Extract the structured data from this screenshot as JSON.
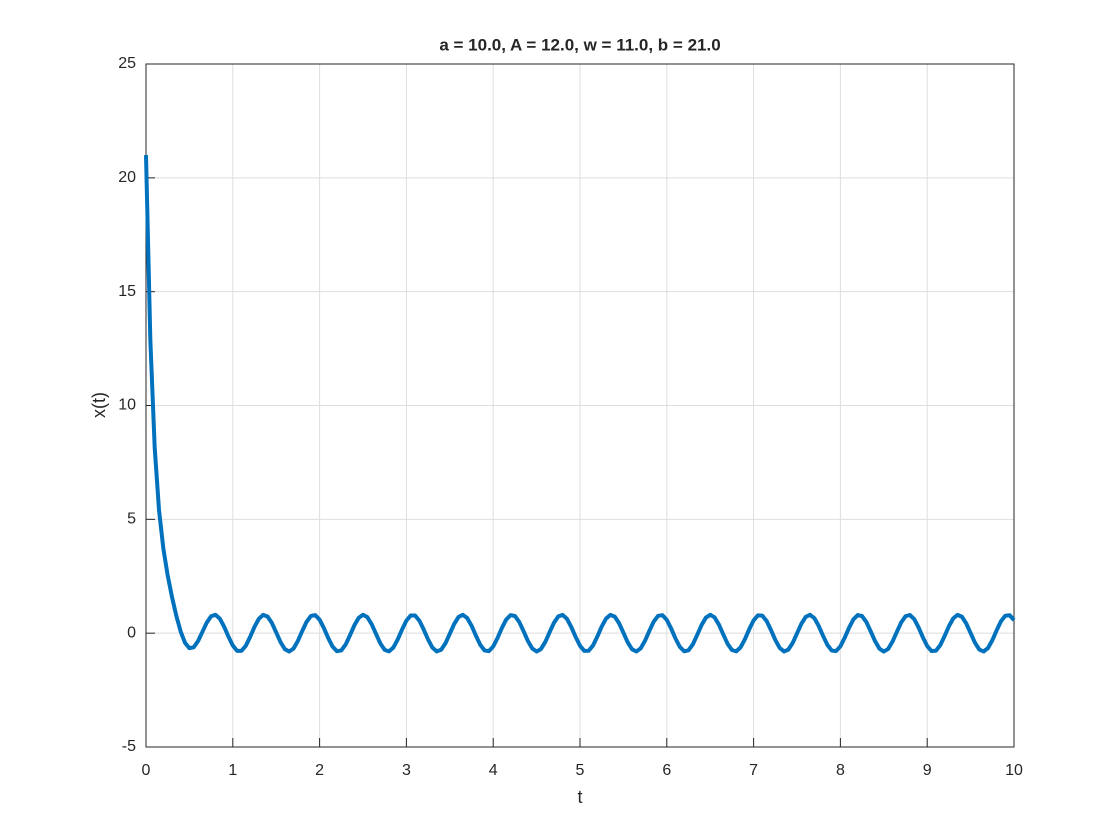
{
  "chart_data": {
    "type": "line",
    "title": "a = 10.0, A = 12.0, w = 11.0, b = 21.0",
    "x_label": "t",
    "y_label": "x(t)",
    "xlim": [
      0,
      10
    ],
    "ylim": [
      -5,
      25
    ],
    "xticks": [
      0,
      1,
      2,
      3,
      4,
      5,
      6,
      7,
      8,
      9,
      10
    ],
    "yticks": [
      -5,
      0,
      5,
      10,
      15,
      20,
      25
    ],
    "grid": true,
    "x": [
      0,
      0.05,
      0.1,
      0.15,
      0.2,
      0.25,
      0.3,
      0.35,
      0.4,
      0.45,
      0.5,
      0.55,
      0.6,
      0.65,
      0.7,
      0.75,
      0.8,
      0.85,
      0.9,
      0.95,
      1,
      1.05,
      1.1,
      1.15,
      1.2,
      1.25,
      1.3,
      1.35,
      1.4,
      1.45,
      1.5,
      1.55,
      1.6,
      1.65,
      1.7,
      1.75,
      1.8,
      1.85,
      1.9,
      1.95,
      2,
      2.05,
      2.1,
      2.15,
      2.2,
      2.25,
      2.3,
      2.35,
      2.4,
      2.45,
      2.5,
      2.55,
      2.6,
      2.65,
      2.7,
      2.75,
      2.8,
      2.85,
      2.9,
      2.95,
      3,
      3.05,
      3.1,
      3.15,
      3.2,
      3.25,
      3.3,
      3.35,
      3.4,
      3.45,
      3.5,
      3.55,
      3.6,
      3.65,
      3.7,
      3.75,
      3.8,
      3.85,
      3.9,
      3.95,
      4,
      4.05,
      4.1,
      4.15,
      4.2,
      4.25,
      4.3,
      4.35,
      4.4,
      4.45,
      4.5,
      4.55,
      4.6,
      4.65,
      4.7,
      4.75,
      4.8,
      4.85,
      4.9,
      4.95,
      5,
      5.05,
      5.1,
      5.15,
      5.2,
      5.25,
      5.3,
      5.35,
      5.4,
      5.45,
      5.5,
      5.55,
      5.6,
      5.65,
      5.7,
      5.75,
      5.8,
      5.85,
      5.9,
      5.95,
      6,
      6.05,
      6.1,
      6.15,
      6.2,
      6.25,
      6.3,
      6.35,
      6.4,
      6.45,
      6.5,
      6.55,
      6.6,
      6.65,
      6.7,
      6.75,
      6.8,
      6.85,
      6.9,
      6.95,
      7,
      7.05,
      7.1,
      7.15,
      7.2,
      7.25,
      7.3,
      7.35,
      7.4,
      7.45,
      7.5,
      7.55,
      7.6,
      7.65,
      7.7,
      7.75,
      7.8,
      7.85,
      7.9,
      7.95,
      8,
      8.05,
      8.1,
      8.15,
      8.2,
      8.25,
      8.3,
      8.35,
      8.4,
      8.45,
      8.5,
      8.55,
      8.6,
      8.65,
      8.7,
      8.75,
      8.8,
      8.85,
      8.9,
      8.95,
      9,
      9.05,
      9.1,
      9.15,
      9.2,
      9.25,
      9.3,
      9.35,
      9.4,
      9.45,
      9.5,
      9.55,
      9.6,
      9.65,
      9.7,
      9.75,
      9.8,
      9.85,
      9.9,
      9.95,
      10
    ],
    "series": [
      {
        "color": "#0072bd",
        "values": [
          21.0,
          12.874,
          8.158,
          5.407,
          3.712,
          2.532,
          1.578,
          0.752,
          0.063,
          -0.427,
          -0.66,
          -0.619,
          -0.344,
          0.059,
          0.465,
          0.743,
          0.809,
          0.64,
          0.285,
          -0.152,
          -0.543,
          -0.776,
          -0.778,
          -0.55,
          -0.16,
          0.277,
          0.633,
          0.801,
          0.734,
          0.45,
          0.033,
          -0.393,
          -0.704,
          -0.807,
          -0.673,
          -0.338,
          0.095,
          0.5,
          0.757,
          0.792,
          0.592,
          0.218,
          -0.22,
          -0.593,
          -0.792,
          -0.759,
          -0.502,
          -0.093,
          0.34,
          0.672,
          0.807,
          0.703,
          0.392,
          -0.034,
          -0.451,
          -0.734,
          -0.801,
          -0.632,
          -0.276,
          0.161,
          0.551,
          0.778,
          0.776,
          0.544,
          0.153,
          -0.283,
          -0.636,
          -0.802,
          -0.731,
          -0.444,
          -0.026,
          0.4,
          0.707,
          0.806,
          0.667,
          0.332,
          -0.101,
          -0.504,
          -0.759,
          -0.79,
          -0.587,
          -0.212,
          0.227,
          0.598,
          0.793,
          0.755,
          0.493,
          0.086,
          -0.345,
          -0.675,
          -0.807,
          -0.7,
          -0.386,
          0.041,
          0.457,
          0.737,
          0.8,
          0.627,
          0.269,
          -0.168,
          -0.555,
          -0.78,
          -0.774,
          -0.539,
          -0.146,
          0.291,
          0.641,
          0.803,
          0.728,
          0.437,
          0.019,
          -0.406,
          -0.711,
          -0.806,
          -0.664,
          -0.325,
          0.109,
          0.511,
          0.762,
          0.789,
          0.583,
          0.205,
          -0.234,
          -0.602,
          -0.795,
          -0.754,
          -0.491,
          -0.079,
          0.352,
          0.68,
          0.807,
          0.697,
          0.379,
          -0.049,
          -0.463,
          -0.74,
          -0.799,
          -0.623,
          -0.263,
          0.175,
          0.561,
          0.782,
          0.772,
          0.534,
          0.139,
          -0.296,
          -0.645,
          -0.804,
          -0.724,
          -0.432,
          -0.012,
          0.412,
          0.714,
          0.806,
          0.659,
          0.319,
          -0.116,
          -0.515,
          -0.764,
          -0.787,
          -0.578,
          -0.198,
          0.24,
          0.608,
          0.796,
          0.749,
          0.482,
          0.072,
          -0.357,
          -0.682,
          -0.807,
          -0.693,
          -0.373,
          0.056,
          0.468,
          0.743,
          0.798,
          0.618,
          0.255,
          -0.182,
          -0.565,
          -0.784,
          -0.771,
          -0.529,
          -0.132,
          0.304,
          0.65,
          0.804,
          0.721,
          0.425,
          0.005,
          -0.418,
          -0.718,
          -0.805,
          -0.656,
          -0.312,
          0.123,
          0.522,
          0.767,
          0.786,
          0.573
        ]
      }
    ]
  }
}
